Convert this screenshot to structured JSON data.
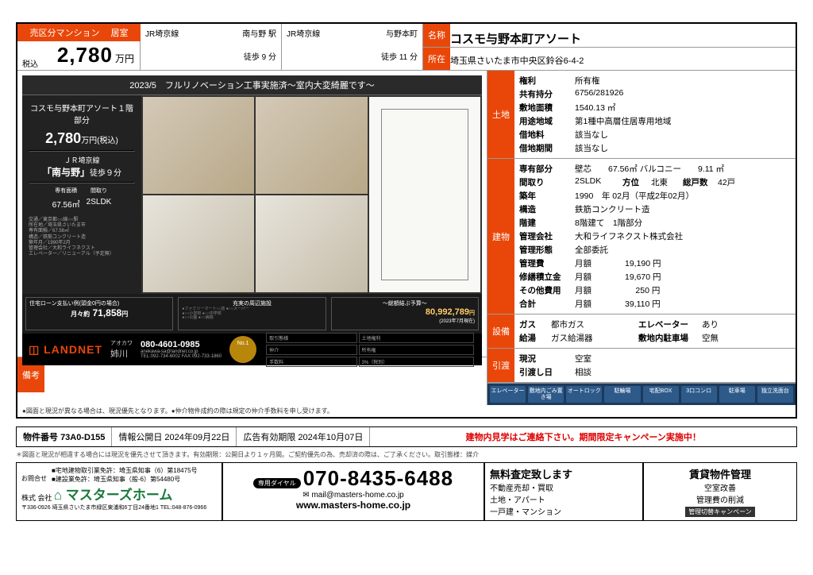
{
  "header": {
    "badge_type": "売区分マンション",
    "badge_room": "居室",
    "tax_label": "税込",
    "price_num": "2,780",
    "price_unit": "万円",
    "line1": {
      "line": "JR埼京線",
      "station": "南与野 駅",
      "walk": "徒歩 9 分"
    },
    "line2": {
      "line": "JR埼京線",
      "station": "与野本町",
      "walk": "徒歩 11 分"
    },
    "name_tag": "名称",
    "name": "コスモ与野本町アソート",
    "addr_tag": "所在",
    "addr": "埼玉県さいたま市中央区鈴谷6-4-2"
  },
  "flyer": {
    "banner": "2023/5　フルリノベーション工事実施済～室内大変綺麗です～",
    "side": {
      "name": "コスモ与野本町アソート１階部分",
      "price": "2,780",
      "price_unit": "万円(税込)",
      "line": "ＪＲ埼京線",
      "station": "「南与野」",
      "walk": "徒歩９分",
      "area_lbl": "専有面積",
      "area": "67.56㎡",
      "plan_lbl": "間取り",
      "plan": "2SLDK"
    },
    "foot": {
      "loan_title": "住宅ローン支払い例(頭金0円の場合)",
      "loan_sub": "月々約",
      "loan_val": "71,858",
      "loan_unit": "円",
      "around_title": "充実の周辺施設",
      "total_title": "～総額結ぶ予算～",
      "total_val": "80,992,789",
      "total_unit": "円",
      "total_note": "(2023年7月現在)"
    },
    "brand": {
      "logo": "LANDNET",
      "person_lbl": "アオカワ",
      "person": "姉川",
      "tel": "080-4601-0985",
      "mail": "anekawa-sa@landnet.co.jp",
      "tel2": "TEL:092-734-6002 FAX:092-733-1860",
      "badge": "No.1",
      "t1": "取引態様",
      "v1": "仲介",
      "t2": "土地権利",
      "v2": "所有権",
      "t3": "手数料",
      "v3": "3%（税別）"
    }
  },
  "remarks": {
    "tag": "備考"
  },
  "land": {
    "tag": "土地",
    "rows": [
      {
        "k": "権利",
        "v": "所有権"
      },
      {
        "k": "共有持分",
        "v": "6756/281926"
      },
      {
        "k": "敷地面積",
        "v": "1540.13 ㎡"
      },
      {
        "k": "用途地域",
        "v": "第1種中高層住居専用地域"
      },
      {
        "k": "借地料",
        "v": "該当なし"
      },
      {
        "k": "借地期間",
        "v": "該当なし"
      }
    ]
  },
  "bldg": {
    "tag": "建物",
    "r1": {
      "k1": "専有部分",
      "v1": "壁芯",
      "k2": "67.56㎡ バルコニー",
      "v2": "9.11 ㎡"
    },
    "r2": {
      "k1": "間取り",
      "v1": "2SLDK",
      "k2": "方位",
      "v2": "北東",
      "k3": "総戸数",
      "v3": "42戸"
    },
    "r3": {
      "k": "築年",
      "v": "1990　年 02月（平成2年02月）"
    },
    "r4": {
      "k": "構造",
      "v": "鉄筋コンクリート造"
    },
    "r5": {
      "k": "階建",
      "v": "8階建て　1階部分"
    },
    "r6": {
      "k": "管理会社",
      "v": "大和ライフネクスト株式会社"
    },
    "r7": {
      "k": "管理形態",
      "v": "全部委託"
    },
    "r8": {
      "k": "管理費",
      "v": "月額　　　　19,190 円"
    },
    "r9": {
      "k": "修繕積立金",
      "v": "月額　　　　19,670 円"
    },
    "r10": {
      "k": "その他費用",
      "v": "月額　　　　　 250 円"
    },
    "r11": {
      "k": "合計",
      "v": "月額　　　　39,110 円"
    }
  },
  "equip": {
    "tag": "設備",
    "r1": {
      "k1": "ガス",
      "v1": "都市ガス",
      "k2": "エレベーター",
      "v2": "あり"
    },
    "r2": {
      "k1": "給湯",
      "v1": "ガス給湯器",
      "k2": "敷地内駐車場",
      "v2": "空無"
    }
  },
  "handover": {
    "tag": "引渡",
    "r1": {
      "k": "現況",
      "v": "空室"
    },
    "r2": {
      "k": "引渡し日",
      "v": "相談"
    }
  },
  "features": [
    "エレベーター",
    "敷地内ごみ置き場",
    "オートロック",
    "駐輪場",
    "宅配BOX",
    "3口コンロ",
    "駐車場",
    "独立洗面台"
  ],
  "fineprint": "●図面と現況が異なる場合は、現況優先となります。●仲介物件成約の際は規定の仲介手数料を申し受けます。",
  "subrow": {
    "id_lbl": "物件番号",
    "id": "73A0-D155",
    "pub_lbl": "情報公開日",
    "pub": "2024年09月22日",
    "exp_lbl": "広告有効期限",
    "exp": "2024年10月07日",
    "notice": "建物内見学はご連絡下さい。期間限定キャンペーン実施中！"
  },
  "disclaimer": "＊図面と現況が相違する場合には現況を優先させて頂きます。有効期限：公開日より１ヶ月間。ご契約優先の為、売却済の際は、ご了承ください。取引態様：媒介",
  "footer": {
    "f1": {
      "inq": "お問合せ",
      "lic1": "■宅地建物取引業免許：埼玉県知事（6）第18475号",
      "lic2": "■建設業免許：埼玉県知事（般-6）第54480号",
      "co_small": "株式\n会社",
      "co": "マスターズホーム",
      "addr": "〒336-0926 埼玉県さいたま市緑区東浦和6丁目24番地1 TEL:048-876-0966"
    },
    "f2": {
      "dial_lbl": "専用ダイヤル",
      "tel": "070-8435-6488",
      "mail": "mail@masters-home.co.jp",
      "url": "www.masters-home.co.jp"
    },
    "f3": {
      "hd": "無料査定致します",
      "l1": "不動産売却・買取",
      "l2": "土地・アパート",
      "l3": "一戸建・マンション"
    },
    "f4": {
      "hd": "賃貸物件管理",
      "l1": "空室改善",
      "l2": "管理費の削減",
      "camp": "管理切替キャンペーン"
    }
  },
  "colors": {
    "accent": "#e94709",
    "navy": "#1b3a5c",
    "green": "#1a7a3a"
  }
}
